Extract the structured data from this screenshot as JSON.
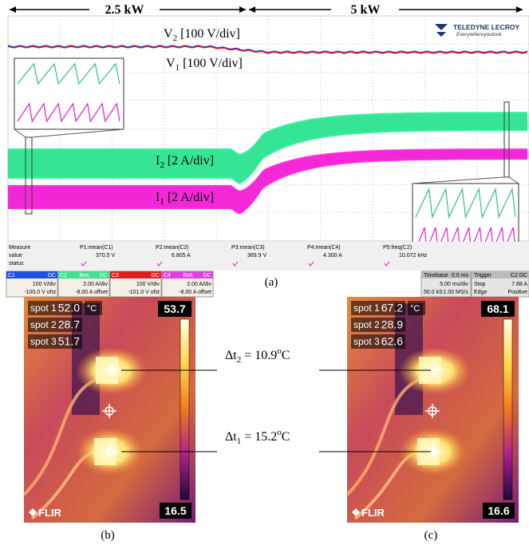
{
  "scope": {
    "power_left": "2.5 kW",
    "power_right": "5 kW",
    "brand": "TELEDYNE LECROY",
    "tagline": "Everywhereyoulook",
    "trace_labels": [
      {
        "main": "V",
        "sub": "2",
        "unit": "[100 V/div]"
      },
      {
        "main": "V",
        "sub": "1",
        "unit": "[100 V/div]"
      },
      {
        "main": "I",
        "sub": "2",
        "unit": "[2 A/div]"
      },
      {
        "main": "I",
        "sub": "1",
        "unit": "[2 A/div]"
      }
    ],
    "measure": {
      "row_labels": [
        "Measure",
        "value",
        "status"
      ],
      "columns": [
        {
          "name": "P1:mean(C1)",
          "value": "370.5 V"
        },
        {
          "name": "P2:mean(C2)",
          "value": "6.805 A"
        },
        {
          "name": "P3:mean(C3)",
          "value": "369.9 V"
        },
        {
          "name": "P4:mean(C4)",
          "value": "4.300 A"
        },
        {
          "name": "P5:freq(C2)",
          "value": "10.072 kHz"
        }
      ]
    },
    "channels": [
      {
        "name": "C1",
        "coupling": "DC",
        "scale": "100 V/div",
        "offset": "-100.0 V ofst"
      },
      {
        "name": "C2",
        "bw": "BwL",
        "coupling": "DC",
        "scale": "2.00 A/div",
        "offset": "-8.00 A offset"
      },
      {
        "name": "C3",
        "coupling": "DC",
        "scale": "100 V/div",
        "offset": "-101.0 V ofst"
      },
      {
        "name": "C4",
        "bw": "BwL",
        "coupling": "DC",
        "scale": "2.00 A/div",
        "offset": "-8.00 A offset"
      }
    ],
    "timebase": {
      "label": "Timebase",
      "delay": "0.0 ms",
      "scale": "5.00 ms/div",
      "samples": "50.0 kS",
      "rate": "1.00 MS/s"
    },
    "trigger": {
      "label": "Trigger",
      "source": "C2 DC",
      "mode": "Stop",
      "level": "7.68 A",
      "type": "Edge",
      "slope": "Positive"
    },
    "caption": "(a)"
  },
  "thermal": [
    {
      "spots": [
        {
          "label": "spot 1",
          "value": "52.0"
        },
        {
          "label": "spot 2",
          "value": "28.7"
        },
        {
          "label": "spot 3",
          "value": "51.7"
        }
      ],
      "unit": "°C",
      "max": "53.7",
      "min": "16.5",
      "brand": "FLIR",
      "caption": "(b)"
    },
    {
      "spots": [
        {
          "label": "spot 1",
          "value": "67.2"
        },
        {
          "label": "spot 2",
          "value": "28.9"
        },
        {
          "label": "spot 3",
          "value": "62.6"
        }
      ],
      "unit": "°C",
      "max": "68.1",
      "min": "16.6",
      "brand": "FLIR",
      "caption": "(c)"
    }
  ],
  "annotations": [
    {
      "main": "Δt",
      "sub": "2",
      "value": " = 10.9",
      "sup": "o",
      "unit": "C"
    },
    {
      "main": "Δt",
      "sub": "1",
      "value": " = 15.2",
      "sup": "o",
      "unit": "C"
    }
  ]
}
